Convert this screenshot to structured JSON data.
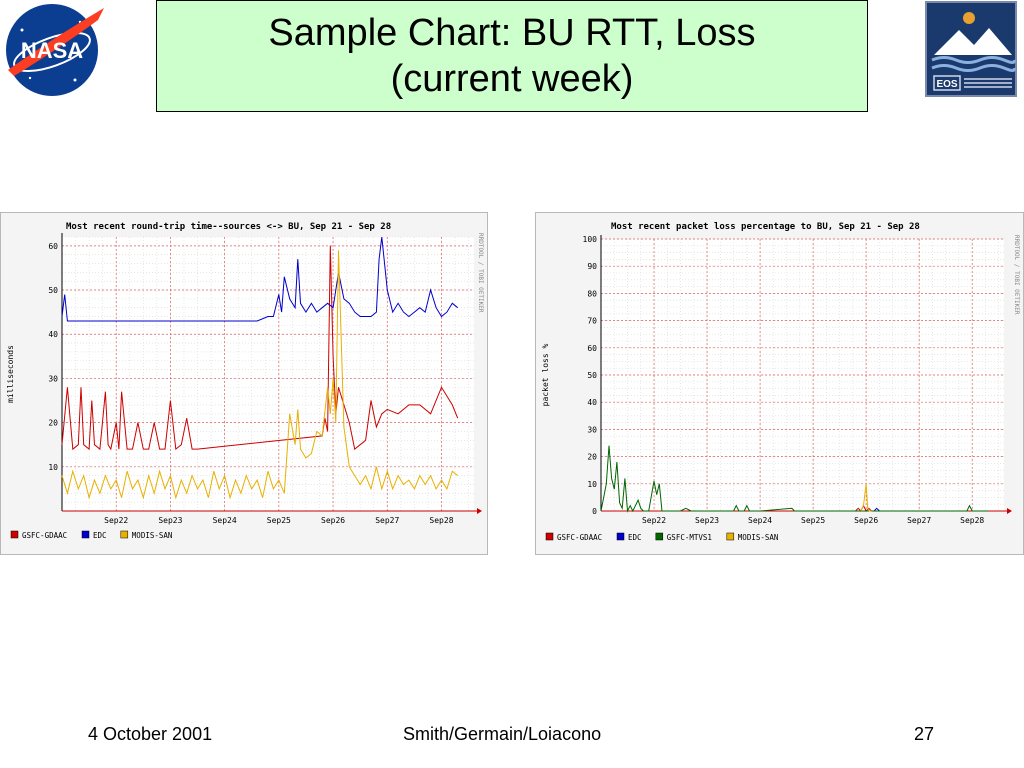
{
  "slide": {
    "title_line1": "Sample Chart: BU RTT, Loss",
    "title_line2": "(current week)",
    "footer": {
      "date": "4 October 2001",
      "authors": "Smith/Germain/Loiacono",
      "page": "27"
    },
    "logos": {
      "left": "NASA",
      "right": "EOS"
    }
  },
  "chart_data": [
    {
      "type": "line",
      "title": "Most recent round-trip time--sources <-> BU, Sep 21 - Sep 28",
      "xlabel": "",
      "ylabel": "milliseconds",
      "watermark": "RRDTOOL / TOBI OETIKER",
      "x_ticks": [
        "Sep22",
        "Sep23",
        "Sep24",
        "Sep25",
        "Sep26",
        "Sep27",
        "Sep28"
      ],
      "xlim": [
        0,
        7.6
      ],
      "ylim": [
        0,
        62
      ],
      "y_ticks": [
        10,
        20,
        30,
        40,
        50,
        60
      ],
      "grid": true,
      "legend_position": "bottom",
      "series": [
        {
          "name": "GSFC-GDAAC",
          "color": "#cc0000",
          "x": [
            0.0,
            0.1,
            0.2,
            0.3,
            0.35,
            0.4,
            0.5,
            0.55,
            0.6,
            0.7,
            0.8,
            0.85,
            0.9,
            1.0,
            1.05,
            1.1,
            1.2,
            1.3,
            1.4,
            1.5,
            1.6,
            1.7,
            1.8,
            1.9,
            2.0,
            2.1,
            2.2,
            2.3,
            2.4,
            2.5,
            4.8,
            4.85,
            4.9,
            4.95,
            5.0,
            5.05,
            5.1,
            5.2,
            5.3,
            5.4,
            5.5,
            5.6,
            5.7,
            5.8,
            5.9,
            6.0,
            6.2,
            6.4,
            6.6,
            6.8,
            7.0,
            7.2,
            7.3
          ],
          "y": [
            15,
            28,
            14,
            15,
            28,
            15,
            14,
            25,
            15,
            14,
            27,
            15,
            14,
            20,
            14,
            27,
            14,
            14,
            20,
            14,
            14,
            20,
            14,
            14,
            25,
            14,
            15,
            21,
            14,
            14,
            17,
            21,
            18,
            60,
            35,
            22,
            28,
            24,
            20,
            14,
            15,
            16,
            25,
            19,
            22,
            23,
            22,
            24,
            24,
            22,
            28,
            24,
            21
          ]
        },
        {
          "name": "EDC",
          "color": "#0000cc",
          "x": [
            0.0,
            0.05,
            0.1,
            0.3,
            0.6,
            0.9,
            1.2,
            1.5,
            1.8,
            2.1,
            2.4,
            2.7,
            3.0,
            3.3,
            3.6,
            3.8,
            3.9,
            4.0,
            4.05,
            4.1,
            4.2,
            4.3,
            4.35,
            4.4,
            4.5,
            4.6,
            4.7,
            4.8,
            4.9,
            5.0,
            5.1,
            5.2,
            5.3,
            5.4,
            5.5,
            5.6,
            5.7,
            5.8,
            5.85,
            5.9,
            6.0,
            6.1,
            6.2,
            6.3,
            6.4,
            6.5,
            6.6,
            6.7,
            6.8,
            6.9,
            7.0,
            7.1,
            7.2,
            7.3
          ],
          "y": [
            44,
            49,
            43,
            43,
            43,
            43,
            43,
            43,
            43,
            43,
            43,
            43,
            43,
            43,
            43,
            44,
            44,
            49,
            45,
            53,
            48,
            46,
            57,
            47,
            45,
            47,
            45,
            46,
            47,
            46,
            54,
            48,
            47,
            45,
            44,
            44,
            44,
            45,
            57,
            62,
            50,
            45,
            47,
            45,
            44,
            45,
            46,
            45,
            50,
            46,
            44,
            45,
            47,
            46
          ]
        },
        {
          "name": "MODIS-SAN",
          "color": "#e8b000",
          "x": [
            0.0,
            0.1,
            0.2,
            0.3,
            0.4,
            0.5,
            0.6,
            0.7,
            0.8,
            0.9,
            1.0,
            1.1,
            1.2,
            1.3,
            1.4,
            1.5,
            1.6,
            1.7,
            1.8,
            1.9,
            2.0,
            2.1,
            2.2,
            2.3,
            2.4,
            2.5,
            2.6,
            2.7,
            2.8,
            2.9,
            3.0,
            3.1,
            3.2,
            3.3,
            3.4,
            3.5,
            3.6,
            3.7,
            3.8,
            3.9,
            4.0,
            4.1,
            4.2,
            4.3,
            4.35,
            4.4,
            4.5,
            4.6,
            4.7,
            4.8,
            4.9,
            4.95,
            5.0,
            5.05,
            5.1,
            5.2,
            5.3,
            5.4,
            5.5,
            5.6,
            5.7,
            5.8,
            5.9,
            6.0,
            6.1,
            6.2,
            6.3,
            6.4,
            6.5,
            6.6,
            6.7,
            6.8,
            6.9,
            7.0,
            7.1,
            7.2,
            7.3
          ],
          "y": [
            8,
            4,
            9,
            5,
            8,
            3,
            7,
            4,
            8,
            5,
            7,
            3,
            9,
            5,
            7,
            3,
            8,
            4,
            9,
            5,
            8,
            3,
            7,
            4,
            8,
            5,
            7,
            3,
            9,
            5,
            8,
            3,
            7,
            4,
            8,
            5,
            7,
            3,
            9,
            5,
            7,
            4,
            22,
            15,
            23,
            14,
            12,
            13,
            18,
            17,
            28,
            22,
            30,
            20,
            59,
            19,
            10,
            8,
            6,
            8,
            5,
            10,
            5,
            9,
            5,
            8,
            6,
            7,
            5,
            8,
            6,
            8,
            5,
            7,
            5,
            9,
            8
          ]
        }
      ]
    },
    {
      "type": "line",
      "title": "Most recent packet loss percentage to BU, Sep 21 - Sep 28",
      "xlabel": "",
      "ylabel": "packet loss %",
      "watermark": "RRDTOOL / TOBI OETIKER",
      "x_ticks": [
        "Sep22",
        "Sep23",
        "Sep24",
        "Sep25",
        "Sep26",
        "Sep27",
        "Sep28"
      ],
      "xlim": [
        0,
        7.6
      ],
      "ylim": [
        0,
        100
      ],
      "y_ticks": [
        0,
        10,
        20,
        30,
        40,
        50,
        60,
        70,
        80,
        90,
        100
      ],
      "grid": true,
      "legend_position": "bottom",
      "series": [
        {
          "name": "GSFC-GDAAC",
          "color": "#cc0000",
          "x": [
            4.8,
            4.85,
            4.9,
            4.95,
            5.0,
            5.05,
            5.1
          ],
          "y": [
            0,
            1,
            0,
            2,
            0,
            1,
            0
          ]
        },
        {
          "name": "EDC",
          "color": "#0000cc",
          "x": [
            5.15,
            5.2,
            5.25
          ],
          "y": [
            0,
            1,
            0
          ]
        },
        {
          "name": "GSFC-MTVS1",
          "color": "#006600",
          "x": [
            0.0,
            0.05,
            0.1,
            0.15,
            0.2,
            0.25,
            0.3,
            0.35,
            0.4,
            0.45,
            0.5,
            0.55,
            0.6,
            0.7,
            0.75,
            0.8,
            0.9,
            1.0,
            1.05,
            1.1,
            1.15,
            1.2,
            1.3,
            1.5,
            1.6,
            1.7,
            2.0,
            2.5,
            2.55,
            2.6,
            2.7,
            2.75,
            2.8,
            3.0,
            3.6,
            3.65,
            3.7,
            4.0,
            4.5,
            5.0,
            6.0,
            6.9,
            6.95,
            7.0,
            7.3
          ],
          "y": [
            0,
            5,
            10,
            24,
            12,
            8,
            18,
            3,
            1,
            12,
            0,
            2,
            0,
            4,
            1,
            0,
            0,
            11,
            6,
            10,
            0,
            0,
            0,
            0,
            1,
            0,
            0,
            0,
            2,
            0,
            0,
            2,
            0,
            0,
            1,
            0,
            0,
            0,
            0,
            0,
            0,
            0,
            2,
            0,
            0
          ]
        },
        {
          "name": "MODIS-SAN",
          "color": "#e8b000",
          "x": [
            4.9,
            4.95,
            5.0,
            5.03,
            5.06,
            5.1
          ],
          "y": [
            0,
            2,
            10,
            1,
            0,
            0
          ]
        }
      ]
    }
  ]
}
